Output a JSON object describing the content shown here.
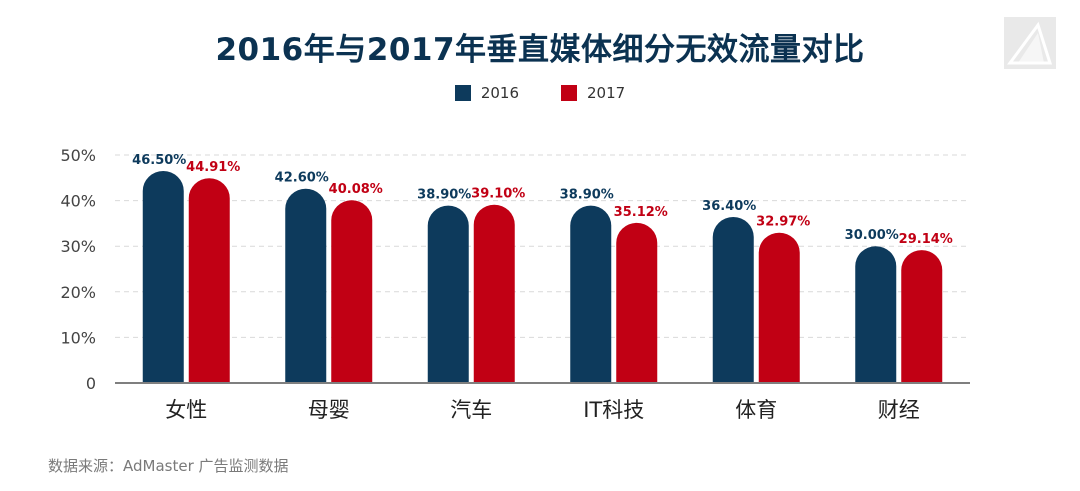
{
  "title": "2016年与2017年垂直媒体细分无效流量对比",
  "source": "数据来源：AdMaster 广告监测数据",
  "logo_icon": "triangle-logo-icon",
  "colors": {
    "series_2016": "#0d3a5c",
    "series_2017": "#c10014",
    "title": "#0b3251",
    "grid": "#d9d9d9",
    "axis": "#7f7f7f"
  },
  "chart_data": {
    "type": "bar",
    "categories": [
      "女性",
      "母婴",
      "汽车",
      "IT科技",
      "体育",
      "财经"
    ],
    "series": [
      {
        "name": "2016",
        "values": [
          46.5,
          42.6,
          38.9,
          38.9,
          36.4,
          30.0
        ],
        "labels": [
          "46.50%",
          "42.60%",
          "38.90%",
          "38.90%",
          "36.40%",
          "30.00%"
        ]
      },
      {
        "name": "2017",
        "values": [
          44.91,
          40.08,
          39.1,
          35.12,
          32.97,
          29.14
        ],
        "labels": [
          "44.91%",
          "40.08%",
          "39.10%",
          "35.12%",
          "32.97%",
          "29.14%"
        ]
      }
    ],
    "ylim": [
      0,
      50
    ],
    "yticks": [
      0,
      10,
      20,
      30,
      40,
      50
    ],
    "ytick_labels": [
      "0",
      "10%",
      "20%",
      "30%",
      "40%",
      "50%"
    ],
    "grid": true,
    "legend_position": "top-center"
  }
}
